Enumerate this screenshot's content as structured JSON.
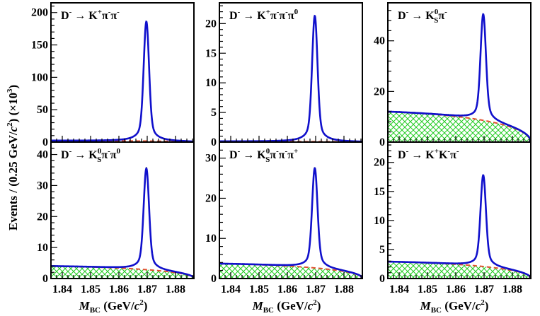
{
  "figure": {
    "ylabel_prefix": "Events / (0.25 GeV/",
    "ylabel_c": "c",
    "ylabel_sq": "2",
    "ylabel_mid": ")  (×10",
    "ylabel_exp": "3",
    "ylabel_end": ")",
    "xlabel_M": "M",
    "xlabel_sub": "BC",
    "xlabel_units_open": " (GeV/",
    "xlabel_c": "c",
    "xlabel_sq": "2",
    "xlabel_units_close": ")",
    "colors": {
      "fit": "#1010cc",
      "background_fill": "#22cc22",
      "background_line": "#e05030",
      "data": "#000000",
      "frame": "#000000"
    }
  },
  "chart_data": [
    {
      "type": "line",
      "decay": [
        {
          "t": "D"
        },
        {
          "t": "-",
          "p": "sup"
        },
        {
          "t": "  → K"
        },
        {
          "t": "+",
          "p": "sup"
        },
        {
          "t": "π"
        },
        {
          "t": "-",
          "p": "sup"
        },
        {
          "t": "π"
        },
        {
          "t": "-",
          "p": "sup"
        }
      ],
      "ylim": [
        0,
        215
      ],
      "yticks": [
        0,
        50,
        100,
        150,
        200
      ],
      "peak": 186,
      "bkg_start": 2.2,
      "xlim": [
        1.836,
        1.8865
      ],
      "xticks": [],
      "show_x_tick_labels": false
    },
    {
      "type": "line",
      "decay": [
        {
          "t": "D"
        },
        {
          "t": "-",
          "p": "sup"
        },
        {
          "t": "  → K"
        },
        {
          "t": "+",
          "p": "sup"
        },
        {
          "t": "π"
        },
        {
          "t": "-",
          "p": "sup"
        },
        {
          "t": "π"
        },
        {
          "t": "-",
          "p": "sup"
        },
        {
          "t": "π"
        },
        {
          "t": "0",
          "p": "sup"
        }
      ],
      "ylim": [
        0,
        23.5
      ],
      "yticks": [
        0,
        5,
        10,
        15,
        20
      ],
      "peak": 21.3,
      "bkg_start": 0.12,
      "xlim": [
        1.836,
        1.8865
      ],
      "xticks": [],
      "show_x_tick_labels": false
    },
    {
      "type": "line",
      "decay": [
        {
          "t": "D"
        },
        {
          "t": "-",
          "p": "sup"
        },
        {
          "t": "  → K"
        },
        {
          "t": "0",
          "p": "supsub",
          "s": "S"
        },
        {
          "t": "π"
        },
        {
          "t": "-",
          "p": "sup"
        }
      ],
      "ylim": [
        0,
        55
      ],
      "yticks": [
        0,
        20,
        40
      ],
      "peak": 50.5,
      "bkg_start": 12,
      "xlim": [
        1.836,
        1.8865
      ],
      "xticks": [],
      "show_x_tick_labels": false
    },
    {
      "type": "line",
      "decay": [
        {
          "t": "D"
        },
        {
          "t": "-",
          "p": "sup"
        },
        {
          "t": "  → K"
        },
        {
          "t": "0",
          "p": "supsub",
          "s": "S"
        },
        {
          "t": "π"
        },
        {
          "t": "-",
          "p": "sup"
        },
        {
          "t": "π"
        },
        {
          "t": "0",
          "p": "sup"
        }
      ],
      "ylim": [
        0,
        44
      ],
      "yticks": [
        0,
        10,
        20,
        30,
        40
      ],
      "peak": 35.5,
      "bkg_start": 4.0,
      "xlim": [
        1.836,
        1.8865
      ],
      "xticks": [
        1.84,
        1.85,
        1.86,
        1.87,
        1.88
      ],
      "xtick_labels": [
        "1.84",
        "1.85",
        "1.86",
        "1.87",
        "1.88"
      ],
      "show_x_tick_labels": true
    },
    {
      "type": "line",
      "decay": [
        {
          "t": "D"
        },
        {
          "t": "-",
          "p": "sup"
        },
        {
          "t": "  → K"
        },
        {
          "t": "0",
          "p": "supsub",
          "s": "S"
        },
        {
          "t": "π"
        },
        {
          "t": "-",
          "p": "sup"
        },
        {
          "t": "π"
        },
        {
          "t": "-",
          "p": "sup"
        },
        {
          "t": "π"
        },
        {
          "t": "+",
          "p": "sup"
        }
      ],
      "ylim": [
        0,
        34
      ],
      "yticks": [
        0,
        10,
        20,
        30
      ],
      "peak": 27.5,
      "bkg_start": 3.7,
      "xlim": [
        1.836,
        1.8865
      ],
      "xticks": [
        1.84,
        1.85,
        1.86,
        1.87,
        1.88
      ],
      "xtick_labels": [
        "1.84",
        "1.85",
        "1.86",
        "1.87",
        "1.88"
      ],
      "show_x_tick_labels": true
    },
    {
      "type": "line",
      "decay": [
        {
          "t": "D"
        },
        {
          "t": "-",
          "p": "sup"
        },
        {
          "t": "  → K"
        },
        {
          "t": "+",
          "p": "sup"
        },
        {
          "t": "K"
        },
        {
          "t": "-",
          "p": "sup"
        },
        {
          "t": "π"
        },
        {
          "t": "-",
          "p": "sup"
        }
      ],
      "ylim": [
        0,
        23.5
      ],
      "yticks": [
        0,
        5,
        10,
        15,
        20
      ],
      "peak": 17.8,
      "bkg_start": 2.9,
      "xlim": [
        1.836,
        1.8865
      ],
      "xticks": [
        1.84,
        1.85,
        1.86,
        1.87,
        1.88
      ],
      "xtick_labels": [
        "1.84",
        "1.85",
        "1.86",
        "1.87",
        "1.88"
      ],
      "show_x_tick_labels": true
    }
  ]
}
